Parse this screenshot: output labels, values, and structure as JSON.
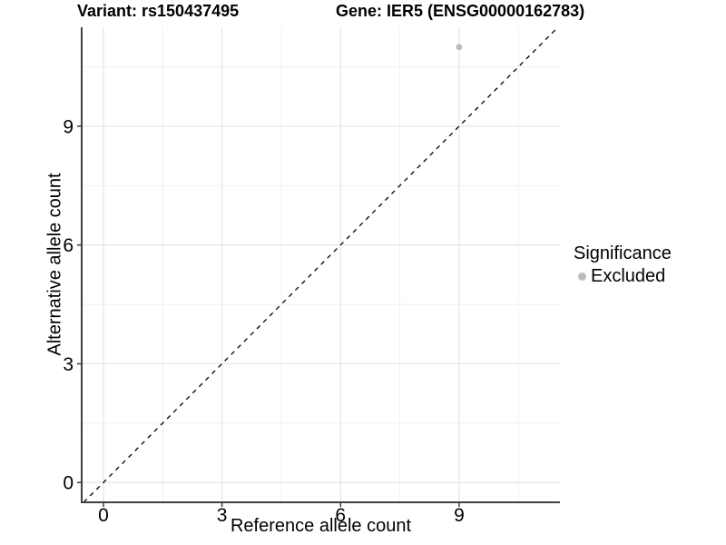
{
  "header": {
    "variant_title": "Variant: rs150437495",
    "gene_title": "Gene: IER5 (ENSG00000162783)"
  },
  "chart_data": {
    "type": "scatter",
    "xlabel": "Reference allele count",
    "ylabel": "Alternative allele count",
    "xlim": [
      -0.55,
      11.55
    ],
    "ylim": [
      -0.5,
      11.5
    ],
    "xticks": [
      0,
      3,
      6,
      9
    ],
    "yticks": [
      0,
      3,
      6,
      9
    ],
    "x_minor_gridlines": [
      1.5,
      4.5,
      7.5,
      10.5
    ],
    "y_minor_gridlines": [
      1.5,
      4.5,
      7.5,
      10.5
    ],
    "grid": true,
    "legend_position": "right",
    "identity_line": {
      "style": "dashed",
      "slope": 1,
      "intercept": 0,
      "color": "#000000"
    },
    "series": [
      {
        "name": "Excluded",
        "color": "#bdbdbd",
        "points": [
          {
            "x": 9,
            "y": 11
          }
        ]
      }
    ]
  },
  "legend": {
    "title": "Significance",
    "items": [
      {
        "label": "Excluded",
        "color": "#bdbdbd",
        "marker": "circle-icon"
      }
    ]
  },
  "colors": {
    "background": "#ffffff",
    "grid_major": "#e4e4e4",
    "grid_minor": "#f1f1f1",
    "axis": "#3f3f3f",
    "text": "#000000",
    "point": "#bdbdbd"
  }
}
